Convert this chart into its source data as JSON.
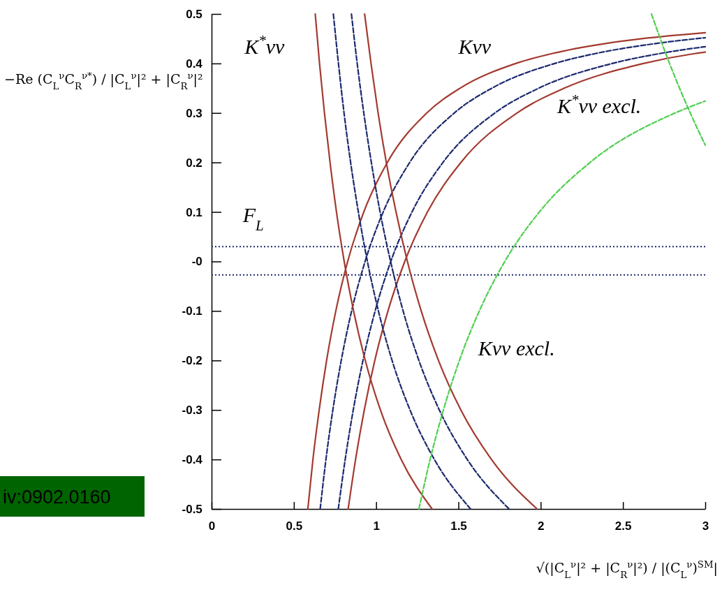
{
  "chart_data": {
    "type": "line",
    "ylabel": "−Re (C$_{L}$$^{ν}$C$_{R}$$^{ν*}$) / |C$_{L}$$^{ν}$|² + |C$_{R}$$^{ν}$|²",
    "xlabel": "√(|C$_{L}$$^{ν}$|² + |C$_{R}$$^{ν}$|²) / |(C$_{L}$$^{ν}$)$^{SM}$|",
    "xlim": [
      0,
      3
    ],
    "ylim": [
      -0.5,
      0.5
    ],
    "xticks": [
      0,
      0.5,
      1,
      1.5,
      2,
      2.5,
      3
    ],
    "yticks": [
      -0.5,
      -0.4,
      -0.3,
      -0.2,
      -0.1,
      {
        "value": 0,
        "label": "-0"
      },
      0.1,
      0.2,
      0.3,
      0.4,
      0.5
    ],
    "series": [
      {
        "color": "#a33a30",
        "line_style": "solid",
        "x": [
          0.585,
          0.616,
          0.654,
          0.699,
          0.755,
          0.827,
          0.925,
          1.068,
          1.308,
          1.51,
          1.849,
          2.068,
          2.387,
          2.615,
          3
        ],
        "values": [
          -0.5,
          -0.4,
          -0.3,
          -0.2,
          -0.1,
          0,
          0.1,
          0.2,
          0.3,
          0.35,
          0.4,
          0.42,
          0.44,
          0.45,
          0.462
        ]
      },
      {
        "color": "#1c2a6e",
        "line_style": "dashed",
        "x": [
          0.66,
          0.695,
          0.737,
          0.788,
          0.851,
          0.933,
          1.043,
          1.204,
          1.475,
          1.703,
          2.086,
          2.332,
          2.693,
          3
        ],
        "values": [
          -0.5,
          -0.4,
          -0.3,
          -0.2,
          -0.1,
          0,
          0.1,
          0.2,
          0.3,
          0.35,
          0.4,
          0.42,
          0.44,
          0.452
        ]
      },
      {
        "color": "#1c2a6e",
        "line_style": "dashed",
        "x": [
          0.77,
          0.812,
          0.861,
          0.92,
          0.994,
          1.089,
          1.218,
          1.406,
          1.722,
          1.988,
          2.435,
          2.723,
          3
        ],
        "values": [
          -0.5,
          -0.4,
          -0.3,
          -0.2,
          -0.1,
          0,
          0.1,
          0.2,
          0.3,
          0.35,
          0.4,
          0.42,
          0.434
        ]
      },
      {
        "color": "#a33a30",
        "line_style": "solid",
        "x": [
          0.83,
          0.875,
          0.928,
          0.992,
          1.072,
          1.174,
          1.312,
          1.515,
          1.856,
          2.143,
          2.625,
          2.935,
          3
        ],
        "values": [
          -0.5,
          -0.4,
          -0.3,
          -0.2,
          -0.1,
          0,
          0.1,
          0.2,
          0.3,
          0.35,
          0.4,
          0.42,
          0.423
        ]
      },
      {
        "color": "#a33a30",
        "line_style": "solid",
        "x": [
          0.63,
          0.656,
          0.686,
          0.72,
          0.759,
          0.806,
          0.863,
          0.934,
          1.026,
          1.152,
          1.34
        ],
        "values": [
          0.5,
          0.4,
          0.3,
          0.2,
          0.1,
          0,
          -0.1,
          -0.2,
          -0.3,
          -0.4,
          -0.5
        ]
      },
      {
        "color": "#1c2a6e",
        "line_style": "dashed",
        "x": [
          0.74,
          0.771,
          0.805,
          0.845,
          0.892,
          0.947,
          1.014,
          1.097,
          1.206,
          1.354,
          1.574
        ],
        "values": [
          0.5,
          0.4,
          0.3,
          0.2,
          0.1,
          0,
          -0.1,
          -0.2,
          -0.3,
          -0.4,
          -0.5
        ]
      },
      {
        "color": "#1c2a6e",
        "line_style": "dashed",
        "x": [
          0.85,
          0.885,
          0.925,
          0.971,
          1.024,
          1.088,
          1.164,
          1.26,
          1.384,
          1.554,
          1.808
        ],
        "values": [
          0.5,
          0.4,
          0.3,
          0.2,
          0.1,
          0,
          -0.1,
          -0.2,
          -0.3,
          -0.4,
          -0.5
        ]
      },
      {
        "color": "#a33a30",
        "line_style": "solid",
        "x": [
          0.93,
          0.969,
          1.012,
          1.062,
          1.121,
          1.19,
          1.274,
          1.379,
          1.515,
          1.701,
          1.978
        ],
        "values": [
          0.5,
          0.4,
          0.3,
          0.2,
          0.1,
          0,
          -0.1,
          -0.2,
          -0.3,
          -0.4,
          -0.5
        ]
      },
      {
        "color": "#4fcf4f",
        "line_style": "dashed",
        "x": [
          1.26,
          1.328,
          1.409,
          1.506,
          1.627,
          1.782,
          1.992,
          2.3,
          2.817,
          3
        ],
        "values": [
          -0.5,
          -0.4,
          -0.3,
          -0.2,
          -0.1,
          0,
          0.1,
          0.2,
          0.3,
          0.324
        ]
      },
      {
        "color": "#4fcf4f",
        "line_style": "dashed",
        "x": [
          2.673,
          2.783,
          2.909,
          3
        ],
        "values": [
          0.5,
          0.4,
          0.3,
          0.235
        ]
      }
    ],
    "ref_lines": [
      {
        "axis": "y",
        "value": 0.03,
        "color": "#1c2a6e",
        "line_style": "dotted"
      },
      {
        "axis": "y",
        "value": -0.027,
        "color": "#1c2a6e",
        "line_style": "dotted"
      }
    ],
    "annotations": [
      "K$^{*}$νν",
      "Kνν",
      "K$^{*}$νν excl.",
      "F$_{L}$",
      "Kνν excl.",
      "iv:0902.0160"
    ]
  }
}
